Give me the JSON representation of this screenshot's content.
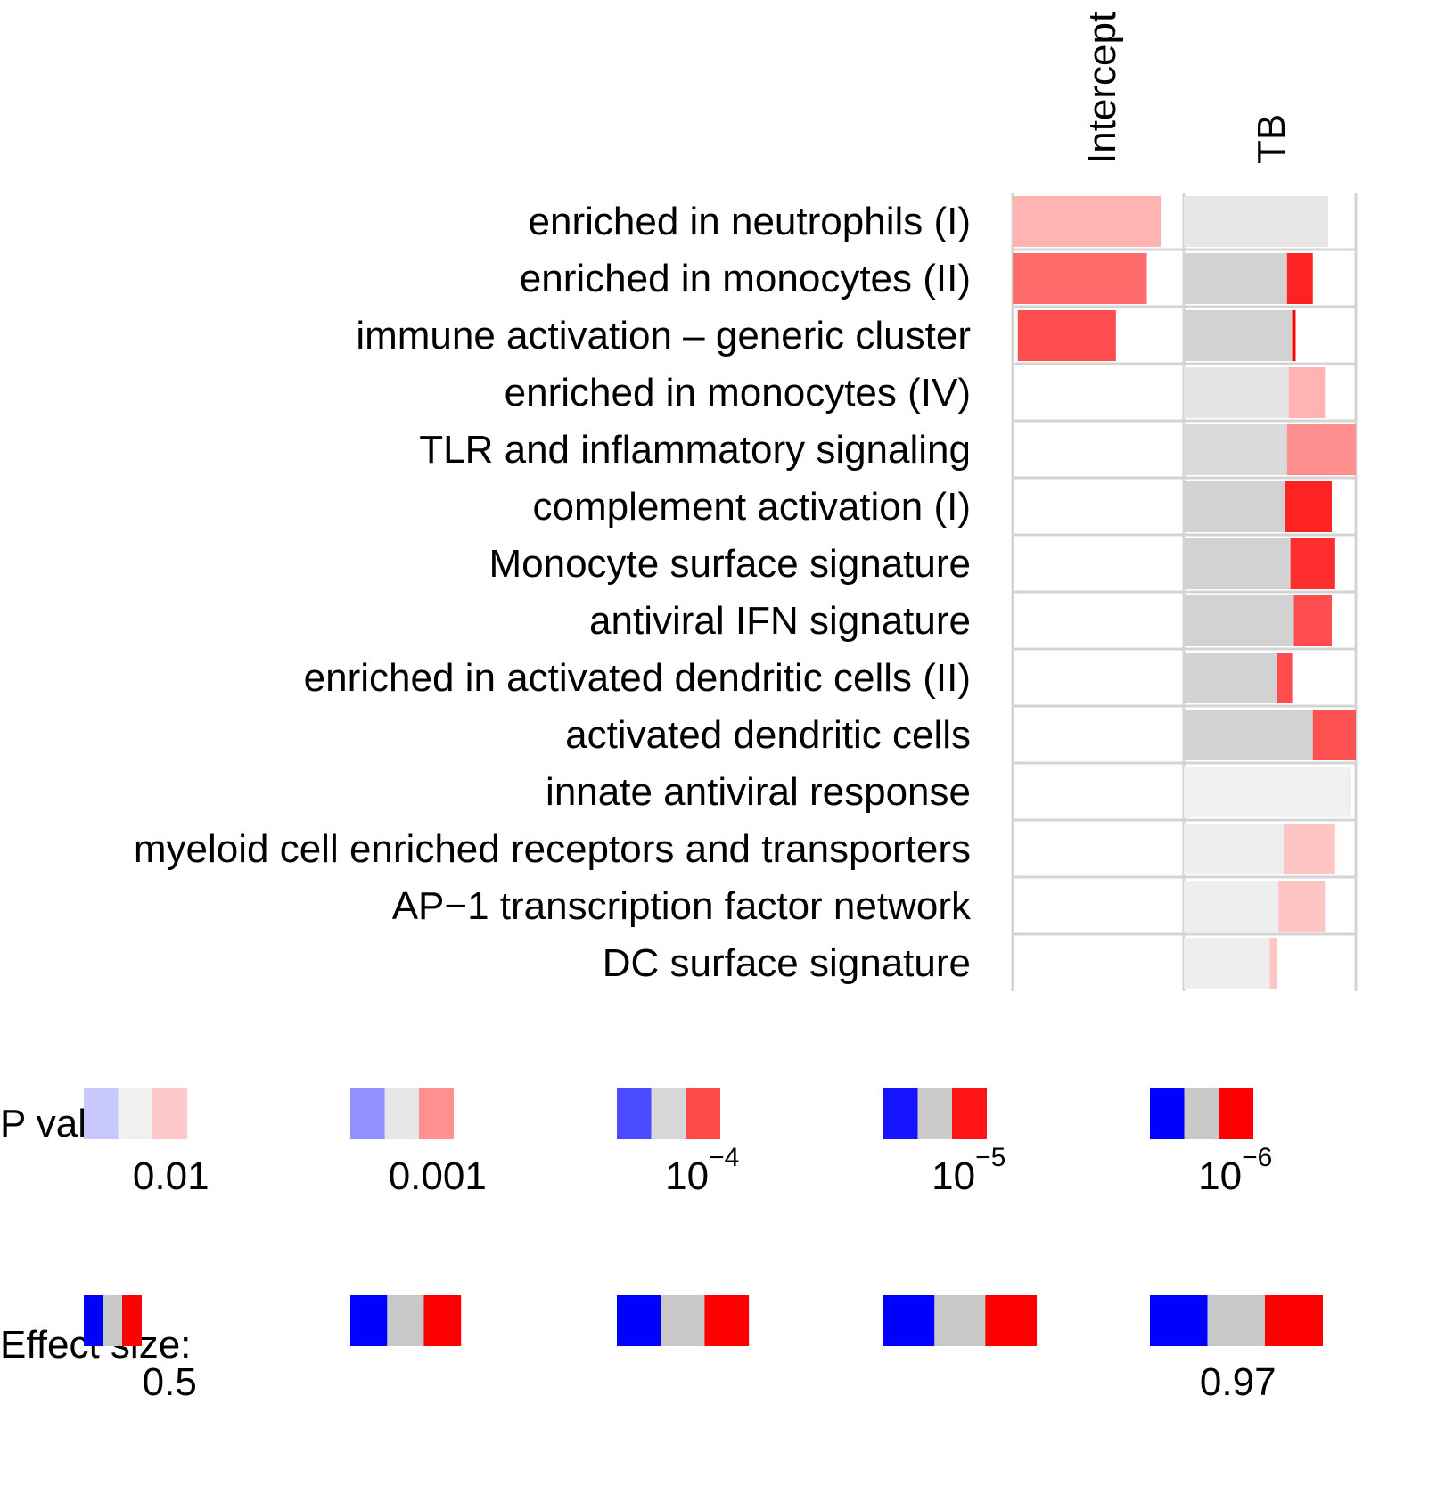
{
  "chart_data": {
    "type": "heatmap",
    "columns": [
      "Intercept",
      "TB"
    ],
    "rows": [
      {
        "label": "enriched in neutrophils (I)",
        "cells": [
          {
            "column": "Intercept",
            "neg": 0,
            "neutral": 0,
            "pos": 0.86,
            "color": "#ffb3b3"
          },
          {
            "column": "TB",
            "neg": 0,
            "neutral": 0.84,
            "pos": 0,
            "color": "#e6e6e6"
          }
        ]
      },
      {
        "label": "enriched in monocytes (II)",
        "cells": [
          {
            "column": "Intercept",
            "neg": 0,
            "neutral": 0,
            "pos": 0.78,
            "color": "#ff6b6b"
          },
          {
            "column": "TB",
            "neg": 0,
            "neutral": 0.6,
            "pos": 0.15,
            "color": "#ff2222"
          }
        ]
      },
      {
        "label": "immune activation – generic cluster",
        "cells": [
          {
            "column": "Intercept",
            "neg": 0.03,
            "neutral": 0,
            "pos": 0.57,
            "color": "#ff4d4d"
          },
          {
            "column": "TB",
            "neg": 0,
            "neutral": 0.63,
            "pos": 0.02,
            "color": "#ff0000"
          }
        ]
      },
      {
        "label": "enriched in monocytes (IV)",
        "cells": [
          {
            "column": "Intercept",
            "neg": 0,
            "neutral": 0,
            "pos": 0,
            "color": "#ffffff"
          },
          {
            "column": "TB",
            "neg": 0,
            "neutral": 0.61,
            "pos": 0.21,
            "color": "#ffb3b3"
          }
        ]
      },
      {
        "label": "TLR and inflammatory signaling",
        "cells": [
          {
            "column": "Intercept",
            "neg": 0,
            "neutral": 0,
            "pos": 0,
            "color": "#ffffff"
          },
          {
            "column": "TB",
            "neg": 0,
            "neutral": 0.6,
            "pos": 0.4,
            "color": "#ff8f8f"
          }
        ]
      },
      {
        "label": "complement activation (I)",
        "cells": [
          {
            "column": "Intercept",
            "neg": 0,
            "neutral": 0,
            "pos": 0,
            "color": "#ffffff"
          },
          {
            "column": "TB",
            "neg": 0,
            "neutral": 0.59,
            "pos": 0.27,
            "color": "#ff2222"
          }
        ]
      },
      {
        "label": "Monocyte surface signature",
        "cells": [
          {
            "column": "Intercept",
            "neg": 0,
            "neutral": 0,
            "pos": 0,
            "color": "#ffffff"
          },
          {
            "column": "TB",
            "neg": 0,
            "neutral": 0.62,
            "pos": 0.26,
            "color": "#ff2e2e"
          }
        ]
      },
      {
        "label": "antiviral IFN signature",
        "cells": [
          {
            "column": "Intercept",
            "neg": 0,
            "neutral": 0,
            "pos": 0,
            "color": "#ffffff"
          },
          {
            "column": "TB",
            "neg": 0,
            "neutral": 0.64,
            "pos": 0.22,
            "color": "#ff4d4d"
          }
        ]
      },
      {
        "label": "enriched in activated dendritic cells (II)",
        "cells": [
          {
            "column": "Intercept",
            "neg": 0,
            "neutral": 0,
            "pos": 0,
            "color": "#ffffff"
          },
          {
            "column": "TB",
            "neg": 0,
            "neutral": 0.54,
            "pos": 0.09,
            "color": "#ff4d4d"
          }
        ]
      },
      {
        "label": "activated dendritic cells",
        "cells": [
          {
            "column": "Intercept",
            "neg": 0,
            "neutral": 0,
            "pos": 0,
            "color": "#ffffff"
          },
          {
            "column": "TB",
            "neg": 0,
            "neutral": 0.75,
            "pos": 0.25,
            "color": "#ff5252"
          }
        ]
      },
      {
        "label": "innate antiviral response",
        "cells": [
          {
            "column": "Intercept",
            "neg": 0,
            "neutral": 0,
            "pos": 0,
            "color": "#ffffff"
          },
          {
            "column": "TB",
            "neg": 0,
            "neutral": 0.97,
            "pos": 0,
            "color": "#f0f0f0"
          }
        ]
      },
      {
        "label": "myeloid cell enriched receptors and transporters",
        "cells": [
          {
            "column": "Intercept",
            "neg": 0,
            "neutral": 0,
            "pos": 0,
            "color": "#ffffff"
          },
          {
            "column": "TB",
            "neg": 0,
            "neutral": 0.58,
            "pos": 0.3,
            "color": "#ffc4c4"
          }
        ]
      },
      {
        "label": "AP−1 transcription factor network",
        "cells": [
          {
            "column": "Intercept",
            "neg": 0,
            "neutral": 0,
            "pos": 0,
            "color": "#ffffff"
          },
          {
            "column": "TB",
            "neg": 0,
            "neutral": 0.55,
            "pos": 0.27,
            "color": "#ffc4c4"
          }
        ]
      },
      {
        "label": "DC surface signature",
        "cells": [
          {
            "column": "Intercept",
            "neg": 0,
            "neutral": 0,
            "pos": 0,
            "color": "#ffffff"
          },
          {
            "column": "TB",
            "neg": 0,
            "neutral": 0.5,
            "pos": 0.04,
            "color": "#ffc4c4"
          }
        ]
      }
    ],
    "legends": {
      "pvalue": {
        "title": "P value:",
        "items": [
          {
            "base": "0.01",
            "exp": "",
            "colors": [
              "#c8c8ff",
              "#f0f0f0",
              "#ffc8c8"
            ]
          },
          {
            "base": "0.001",
            "exp": "",
            "colors": [
              "#9090ff",
              "#e6e6e6",
              "#ff9090"
            ]
          },
          {
            "base": "10",
            "exp": "−4",
            "colors": [
              "#4a4aff",
              "#d8d8d8",
              "#ff4a4a"
            ]
          },
          {
            "base": "10",
            "exp": "−5",
            "colors": [
              "#1414ff",
              "#cccccc",
              "#ff1414"
            ]
          },
          {
            "base": "10",
            "exp": "−6",
            "colors": [
              "#0000ff",
              "#c8c8c8",
              "#ff0000"
            ]
          }
        ]
      },
      "effect": {
        "title": "Effect size:",
        "colors": [
          "#0000ff",
          "#c8c8c8",
          "#ff0000"
        ],
        "items": [
          {
            "label": "0.5",
            "size": 0.5
          },
          {
            "label": "",
            "size": 0.62
          },
          {
            "label": "",
            "size": 0.74
          },
          {
            "label": "",
            "size": 0.86
          },
          {
            "label": "0.97",
            "size": 0.97
          }
        ]
      }
    }
  }
}
